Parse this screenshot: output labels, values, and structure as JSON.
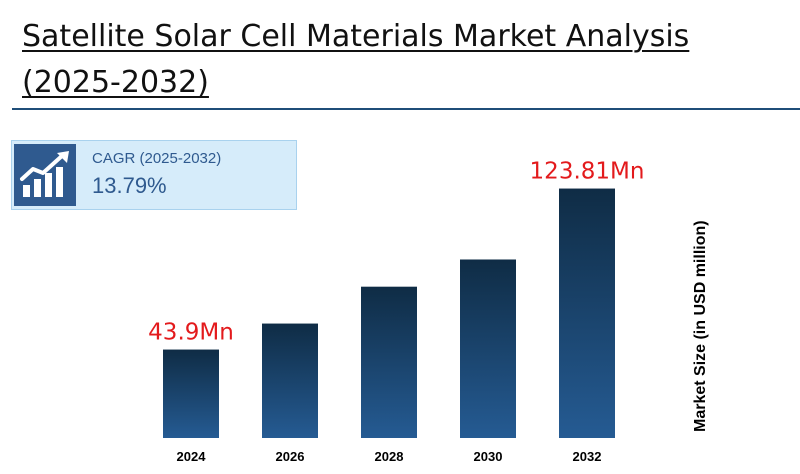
{
  "header": {
    "title": "Satellite Solar Cell Materials Market Analysis (2025-2032)"
  },
  "cagr": {
    "label": "CAGR (2025-2032)",
    "value": "13.79%",
    "icon": "growth-chart-icon"
  },
  "colors": {
    "bar_top": "#0f2c45",
    "bar_bottom": "#255b93",
    "annotation": "#e31a1c",
    "accent": "#2f5a8f"
  },
  "chart_data": {
    "type": "bar",
    "categories": [
      "2024",
      "2026",
      "2028",
      "2030",
      "2032"
    ],
    "values": [
      43.9,
      56.8,
      75.1,
      88.6,
      123.81
    ],
    "data_labels": [
      "43.9Mn",
      "",
      "",
      "",
      "123.81Mn"
    ],
    "xlabel": "",
    "ylabel": "Market Size (in USD million)",
    "ylim": [
      0,
      135
    ],
    "grid": false,
    "legend": "none"
  }
}
